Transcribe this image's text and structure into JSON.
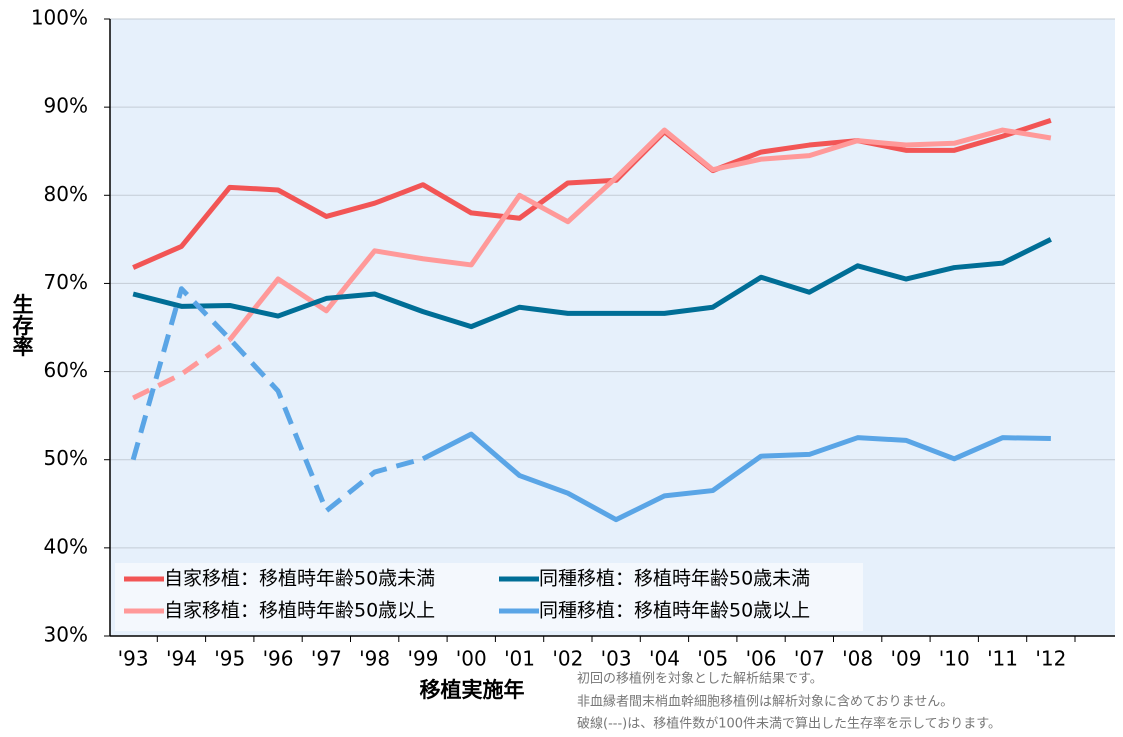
{
  "chart_data": {
    "type": "line",
    "xlabel": "移植実施年",
    "ylabel": "生存率",
    "categories": [
      "'93",
      "'94",
      "'95",
      "'96",
      "'97",
      "'98",
      "'99",
      "'00",
      "'01",
      "'02",
      "'03",
      "'04",
      "'05",
      "'06",
      "'07",
      "'08",
      "'09",
      "'10",
      "'11",
      "'12",
      null
    ],
    "ylim": [
      30,
      100
    ],
    "yticks": [
      {
        "value": 30,
        "label": "30%"
      },
      {
        "value": 40,
        "label": "40%"
      },
      {
        "value": 50,
        "label": "50%"
      },
      {
        "value": 60,
        "label": "60%"
      },
      {
        "value": 70,
        "label": "70%"
      },
      {
        "value": 80,
        "label": "80%"
      },
      {
        "value": 90,
        "label": "90%"
      },
      {
        "value": 100,
        "label": "100%"
      }
    ],
    "grid": true,
    "legend": "lower left",
    "series": [
      {
        "name": "自家移植：移植時年齢50歳未満",
        "color": "#f25555",
        "dashed_until": null,
        "values": [
          71.8,
          74.2,
          80.9,
          80.6,
          77.6,
          79.1,
          81.2,
          78.0,
          77.4,
          81.4,
          81.7,
          87.2,
          82.8,
          84.9,
          85.7,
          86.2,
          85.1,
          85.1,
          86.7,
          88.5,
          null
        ]
      },
      {
        "name": "自家移植：移植時年齢50歳以上",
        "color": "#ff9999",
        "dashed_until": "'95",
        "values": [
          57.0,
          59.7,
          63.6,
          70.5,
          66.9,
          73.7,
          72.8,
          72.1,
          80.0,
          77.0,
          82.0,
          87.4,
          82.9,
          84.1,
          84.5,
          86.2,
          85.7,
          85.9,
          87.4,
          86.5,
          null
        ]
      },
      {
        "name": "同種移植：移植時年齢50歳未満",
        "color": "#006e96",
        "dashed_until": null,
        "values": [
          68.8,
          67.4,
          67.5,
          66.3,
          68.3,
          68.8,
          66.8,
          65.1,
          67.3,
          66.6,
          66.6,
          66.6,
          67.3,
          70.7,
          69.0,
          72.0,
          70.5,
          71.8,
          72.3,
          75.0,
          null
        ]
      },
      {
        "name": "同種移植：移植時年齢50歳以上",
        "color": "#5aa5e6",
        "dashed_until": "'99",
        "values": [
          50.0,
          69.4,
          63.7,
          57.8,
          44.2,
          48.6,
          50.1,
          52.9,
          48.2,
          46.2,
          43.2,
          45.9,
          46.5,
          50.4,
          50.6,
          52.5,
          52.2,
          50.1,
          52.5,
          52.4,
          null
        ]
      }
    ],
    "annotations": [
      "初回の移植例を対象とした解析結果です。",
      "非血縁者間末梢血幹細胞移植例は解析対象に含めておりません。",
      "破線(---)は、移植件数が100件未満で算出した生存率を示しております。"
    ]
  }
}
